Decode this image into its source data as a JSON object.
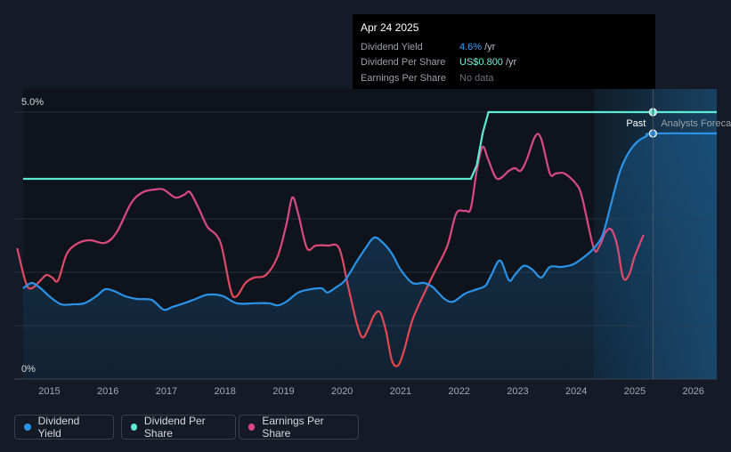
{
  "tooltip": {
    "date": "Apr 24 2025",
    "rows": [
      {
        "label": "Dividend Yield",
        "value": "4.6%",
        "unit": "/yr"
      },
      {
        "label": "Dividend Per Share",
        "value": "US$0.800",
        "unit": "/yr"
      },
      {
        "label": "Earnings Per Share",
        "value": "No data",
        "unit": ""
      }
    ]
  },
  "legend": [
    {
      "label": "Dividend Yield",
      "color": "#2a93e8"
    },
    {
      "label": "Dividend Per Share",
      "color": "#5eead4"
    },
    {
      "label": "Earnings Per Share",
      "color": "#d9488a"
    }
  ],
  "chart_data": {
    "type": "line",
    "x_ticks": [
      "2015",
      "2016",
      "2017",
      "2018",
      "2019",
      "2020",
      "2021",
      "2022",
      "2023",
      "2024",
      "2025",
      "2026"
    ],
    "y_ticks": [
      "0%",
      "5.0%"
    ],
    "ylim": [
      0,
      5
    ],
    "xlim": [
      2014.4,
      2026.4
    ],
    "region_labels": {
      "past": "Past",
      "forecast": "Analysts Forecasts"
    },
    "past_end": 2025.31,
    "grid": true,
    "series": [
      {
        "name": "Dividend Yield",
        "color": "#2a93e8",
        "points": [
          [
            2014.55,
            1.7
          ],
          [
            2014.7,
            1.8
          ],
          [
            2014.85,
            1.7
          ],
          [
            2015.0,
            1.55
          ],
          [
            2015.2,
            1.4
          ],
          [
            2015.4,
            1.4
          ],
          [
            2015.6,
            1.42
          ],
          [
            2015.8,
            1.55
          ],
          [
            2015.95,
            1.68
          ],
          [
            2016.1,
            1.65
          ],
          [
            2016.3,
            1.55
          ],
          [
            2016.5,
            1.5
          ],
          [
            2016.75,
            1.48
          ],
          [
            2016.95,
            1.3
          ],
          [
            2017.1,
            1.35
          ],
          [
            2017.3,
            1.42
          ],
          [
            2017.5,
            1.5
          ],
          [
            2017.7,
            1.58
          ],
          [
            2017.95,
            1.56
          ],
          [
            2018.2,
            1.42
          ],
          [
            2018.5,
            1.42
          ],
          [
            2018.75,
            1.42
          ],
          [
            2018.9,
            1.38
          ],
          [
            2019.05,
            1.45
          ],
          [
            2019.25,
            1.62
          ],
          [
            2019.45,
            1.68
          ],
          [
            2019.65,
            1.7
          ],
          [
            2019.75,
            1.62
          ],
          [
            2019.9,
            1.72
          ],
          [
            2020.05,
            1.85
          ],
          [
            2020.25,
            2.2
          ],
          [
            2020.4,
            2.45
          ],
          [
            2020.55,
            2.65
          ],
          [
            2020.7,
            2.55
          ],
          [
            2020.85,
            2.35
          ],
          [
            2021.0,
            2.05
          ],
          [
            2021.2,
            1.8
          ],
          [
            2021.4,
            1.8
          ],
          [
            2021.55,
            1.72
          ],
          [
            2021.75,
            1.5
          ],
          [
            2021.9,
            1.45
          ],
          [
            2022.1,
            1.6
          ],
          [
            2022.3,
            1.68
          ],
          [
            2022.45,
            1.75
          ],
          [
            2022.55,
            1.95
          ],
          [
            2022.7,
            2.22
          ],
          [
            2022.85,
            1.85
          ],
          [
            2022.95,
            1.95
          ],
          [
            2023.1,
            2.12
          ],
          [
            2023.25,
            2.05
          ],
          [
            2023.4,
            1.9
          ],
          [
            2023.55,
            2.1
          ],
          [
            2023.75,
            2.1
          ],
          [
            2023.95,
            2.15
          ],
          [
            2024.15,
            2.3
          ],
          [
            2024.3,
            2.45
          ],
          [
            2024.45,
            2.7
          ],
          [
            2024.6,
            3.3
          ],
          [
            2024.75,
            3.9
          ],
          [
            2024.9,
            4.25
          ],
          [
            2025.05,
            4.45
          ],
          [
            2025.2,
            4.55
          ],
          [
            2025.31,
            4.6
          ],
          [
            2026.4,
            4.6
          ]
        ]
      },
      {
        "name": "Dividend Per Share",
        "color": "#5eead4",
        "points": [
          [
            2014.55,
            3.75
          ],
          [
            2022.2,
            3.75
          ],
          [
            2022.3,
            4.0
          ],
          [
            2022.4,
            4.6
          ],
          [
            2022.5,
            5.0
          ],
          [
            2025.31,
            5.0
          ],
          [
            2026.4,
            5.0
          ]
        ]
      },
      {
        "name": "Earnings Per Share",
        "color": "#d9488a",
        "points": [
          [
            2014.45,
            2.45
          ],
          [
            2014.6,
            1.8
          ],
          [
            2014.7,
            1.7
          ],
          [
            2014.85,
            1.85
          ],
          [
            2014.95,
            1.95
          ],
          [
            2015.05,
            1.9
          ],
          [
            2015.15,
            1.85
          ],
          [
            2015.3,
            2.35
          ],
          [
            2015.5,
            2.55
          ],
          [
            2015.7,
            2.6
          ],
          [
            2015.95,
            2.55
          ],
          [
            2016.15,
            2.75
          ],
          [
            2016.4,
            3.3
          ],
          [
            2016.6,
            3.5
          ],
          [
            2016.8,
            3.55
          ],
          [
            2016.95,
            3.55
          ],
          [
            2017.15,
            3.4
          ],
          [
            2017.3,
            3.45
          ],
          [
            2017.4,
            3.5
          ],
          [
            2017.55,
            3.2
          ],
          [
            2017.7,
            2.85
          ],
          [
            2017.85,
            2.7
          ],
          [
            2017.95,
            2.45
          ],
          [
            2018.1,
            1.65
          ],
          [
            2018.2,
            1.55
          ],
          [
            2018.35,
            1.8
          ],
          [
            2018.5,
            1.9
          ],
          [
            2018.7,
            1.95
          ],
          [
            2018.9,
            2.3
          ],
          [
            2019.05,
            2.9
          ],
          [
            2019.15,
            3.4
          ],
          [
            2019.25,
            3.1
          ],
          [
            2019.4,
            2.45
          ],
          [
            2019.55,
            2.5
          ],
          [
            2019.75,
            2.5
          ],
          [
            2019.95,
            2.45
          ],
          [
            2020.1,
            1.75
          ],
          [
            2020.25,
            1.05
          ],
          [
            2020.35,
            0.78
          ],
          [
            2020.45,
            0.95
          ],
          [
            2020.55,
            1.2
          ],
          [
            2020.65,
            1.25
          ],
          [
            2020.75,
            0.9
          ],
          [
            2020.85,
            0.35
          ],
          [
            2020.95,
            0.25
          ],
          [
            2021.05,
            0.5
          ],
          [
            2021.2,
            1.1
          ],
          [
            2021.4,
            1.6
          ],
          [
            2021.6,
            2.05
          ],
          [
            2021.8,
            2.5
          ],
          [
            2021.95,
            3.1
          ],
          [
            2022.1,
            3.15
          ],
          [
            2022.2,
            3.2
          ],
          [
            2022.3,
            3.9
          ],
          [
            2022.4,
            4.35
          ],
          [
            2022.5,
            4.1
          ],
          [
            2022.65,
            3.75
          ],
          [
            2022.85,
            3.9
          ],
          [
            2022.95,
            3.95
          ],
          [
            2023.05,
            3.9
          ],
          [
            2023.15,
            4.1
          ],
          [
            2023.3,
            4.55
          ],
          [
            2023.4,
            4.5
          ],
          [
            2023.55,
            3.85
          ],
          [
            2023.65,
            3.85
          ],
          [
            2023.8,
            3.85
          ],
          [
            2024.0,
            3.65
          ],
          [
            2024.1,
            3.4
          ],
          [
            2024.3,
            2.45
          ],
          [
            2024.4,
            2.5
          ],
          [
            2024.5,
            2.75
          ],
          [
            2024.6,
            2.8
          ],
          [
            2024.7,
            2.5
          ],
          [
            2024.8,
            1.9
          ],
          [
            2024.9,
            1.95
          ],
          [
            2025.0,
            2.3
          ],
          [
            2025.15,
            2.7
          ]
        ]
      }
    ]
  }
}
